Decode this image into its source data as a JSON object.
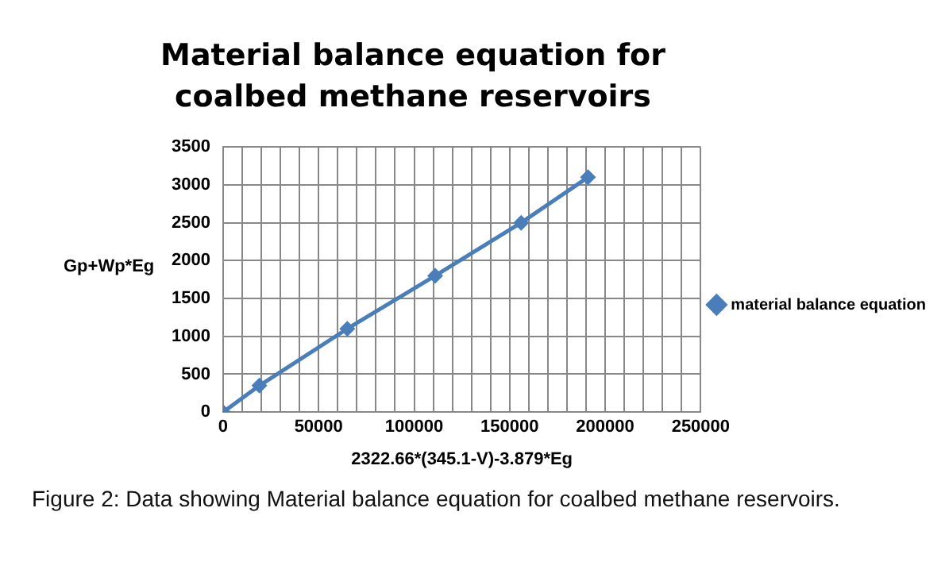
{
  "chart_data": {
    "type": "line",
    "title": "Material balance equation for coalbed methane reservoirs",
    "xlabel": "2322.66*(345.1-V)-3.879*Eg",
    "ylabel": "Gp+Wp*Eg",
    "x": [
      0,
      19000,
      65000,
      111000,
      156000,
      191000
    ],
    "series": [
      {
        "name": "material balance equation",
        "color": "#4a7ebb",
        "values": [
          0,
          350,
          1100,
          1800,
          2500,
          3100
        ]
      }
    ],
    "xlim": [
      0,
      250000
    ],
    "xticks": [
      0,
      {
        "value": 10000,
        "label": null
      },
      {
        "value": 20000,
        "label": null
      },
      {
        "value": 30000,
        "label": null
      },
      {
        "value": 40000,
        "label": null
      },
      50000,
      {
        "value": 60000,
        "label": null
      },
      {
        "value": 70000,
        "label": null
      },
      {
        "value": 80000,
        "label": null
      },
      {
        "value": 90000,
        "label": null
      },
      100000,
      {
        "value": 110000,
        "label": null
      },
      {
        "value": 120000,
        "label": null
      },
      {
        "value": 130000,
        "label": null
      },
      {
        "value": 140000,
        "label": null
      },
      150000,
      {
        "value": 160000,
        "label": null
      },
      {
        "value": 170000,
        "label": null
      },
      {
        "value": 180000,
        "label": null
      },
      {
        "value": 190000,
        "label": null
      },
      200000,
      {
        "value": 210000,
        "label": null
      },
      {
        "value": 220000,
        "label": null
      },
      {
        "value": 230000,
        "label": null
      },
      {
        "value": 240000,
        "label": null
      },
      250000
    ],
    "ylim": [
      0,
      3500
    ],
    "yticks": [
      0,
      500,
      1000,
      1500,
      2000,
      2500,
      3000,
      3500
    ],
    "grid": true,
    "legend": "right",
    "marker": "diamond",
    "line_style": "solid",
    "annotations": [
      "Figure 2: Data showing Material balance equation for coalbed methane reservoirs."
    ]
  }
}
